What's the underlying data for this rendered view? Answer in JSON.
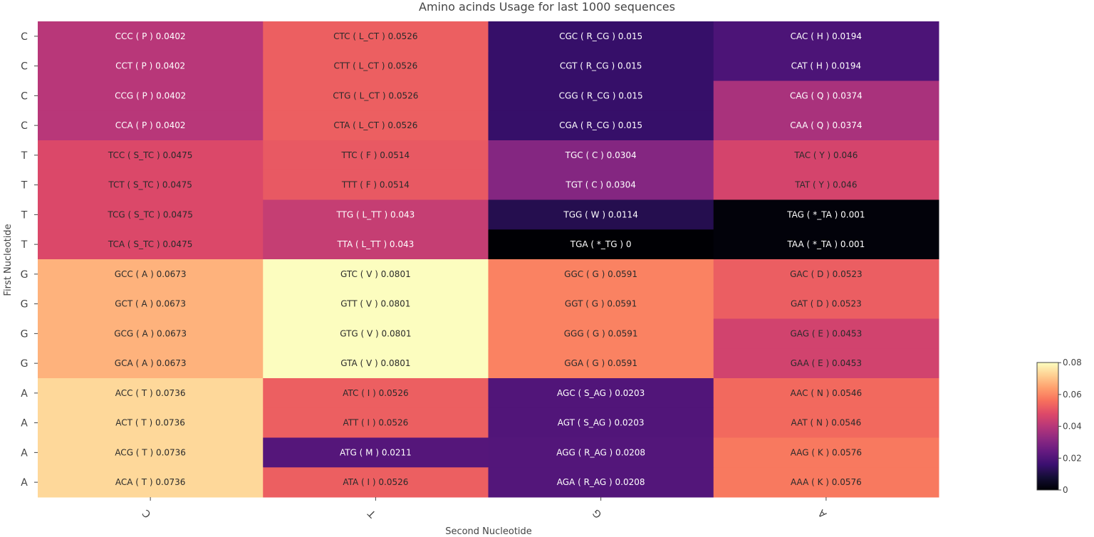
{
  "chart_data": {
    "type": "heatmap",
    "title": "Amino acinds Usage for last 1000 sequences",
    "xlabel": "Second Nucleotide",
    "ylabel": "First Nucleotide",
    "x_categories": [
      "C",
      "T",
      "G",
      "A"
    ],
    "y_categories": [
      "C",
      "C",
      "C",
      "C",
      "T",
      "T",
      "T",
      "T",
      "G",
      "G",
      "G",
      "G",
      "A",
      "A",
      "A",
      "A"
    ],
    "values": [
      [
        0.0402,
        0.0526,
        0.015,
        0.0194
      ],
      [
        0.0402,
        0.0526,
        0.015,
        0.0194
      ],
      [
        0.0402,
        0.0526,
        0.015,
        0.0374
      ],
      [
        0.0402,
        0.0526,
        0.015,
        0.0374
      ],
      [
        0.0475,
        0.0514,
        0.0304,
        0.046
      ],
      [
        0.0475,
        0.0514,
        0.0304,
        0.046
      ],
      [
        0.0475,
        0.043,
        0.0114,
        0.001
      ],
      [
        0.0475,
        0.043,
        0,
        0.001
      ],
      [
        0.0673,
        0.0801,
        0.0591,
        0.0523
      ],
      [
        0.0673,
        0.0801,
        0.0591,
        0.0523
      ],
      [
        0.0673,
        0.0801,
        0.0591,
        0.0453
      ],
      [
        0.0673,
        0.0801,
        0.0591,
        0.0453
      ],
      [
        0.0736,
        0.0526,
        0.0203,
        0.0546
      ],
      [
        0.0736,
        0.0526,
        0.0203,
        0.0546
      ],
      [
        0.0736,
        0.0211,
        0.0208,
        0.0576
      ],
      [
        0.0736,
        0.0526,
        0.0208,
        0.0576
      ]
    ],
    "cell_labels": [
      [
        "CCC ( P ) 0.0402",
        "CTC ( L_CT ) 0.0526",
        "CGC ( R_CG ) 0.015",
        "CAC ( H ) 0.0194"
      ],
      [
        "CCT ( P ) 0.0402",
        "CTT ( L_CT ) 0.0526",
        "CGT ( R_CG ) 0.015",
        "CAT ( H ) 0.0194"
      ],
      [
        "CCG ( P ) 0.0402",
        "CTG ( L_CT ) 0.0526",
        "CGG ( R_CG ) 0.015",
        "CAG ( Q ) 0.0374"
      ],
      [
        "CCA ( P ) 0.0402",
        "CTA ( L_CT ) 0.0526",
        "CGA ( R_CG ) 0.015",
        "CAA ( Q ) 0.0374"
      ],
      [
        "TCC ( S_TC ) 0.0475",
        "TTC ( F ) 0.0514",
        "TGC ( C ) 0.0304",
        "TAC ( Y ) 0.046"
      ],
      [
        "TCT ( S_TC ) 0.0475",
        "TTT ( F ) 0.0514",
        "TGT ( C ) 0.0304",
        "TAT ( Y ) 0.046"
      ],
      [
        "TCG ( S_TC ) 0.0475",
        "TTG ( L_TT ) 0.043",
        "TGG ( W ) 0.0114",
        "TAG ( *_TA ) 0.001"
      ],
      [
        "TCA ( S_TC ) 0.0475",
        "TTA ( L_TT ) 0.043",
        "TGA ( *_TG ) 0",
        "TAA ( *_TA ) 0.001"
      ],
      [
        "GCC ( A ) 0.0673",
        "GTC ( V ) 0.0801",
        "GGC ( G ) 0.0591",
        "GAC ( D ) 0.0523"
      ],
      [
        "GCT ( A ) 0.0673",
        "GTT ( V ) 0.0801",
        "GGT ( G ) 0.0591",
        "GAT ( D ) 0.0523"
      ],
      [
        "GCG ( A ) 0.0673",
        "GTG ( V ) 0.0801",
        "GGG ( G ) 0.0591",
        "GAG ( E ) 0.0453"
      ],
      [
        "GCA ( A ) 0.0673",
        "GTA ( V ) 0.0801",
        "GGA ( G ) 0.0591",
        "GAA ( E ) 0.0453"
      ],
      [
        "ACC ( T ) 0.0736",
        "ATC ( I ) 0.0526",
        "AGC ( S_AG ) 0.0203",
        "AAC ( N ) 0.0546"
      ],
      [
        "ACT ( T ) 0.0736",
        "ATT ( I ) 0.0526",
        "AGT ( S_AG ) 0.0203",
        "AAT ( N ) 0.0546"
      ],
      [
        "ACG ( T ) 0.0736",
        "ATG ( M ) 0.0211",
        "AGG ( R_AG ) 0.0208",
        "AAG ( K ) 0.0576"
      ],
      [
        "ACA ( T ) 0.0736",
        "ATA ( I ) 0.0526",
        "AGA ( R_AG ) 0.0208",
        "AAA ( K ) 0.0576"
      ]
    ],
    "colorscale": "magma",
    "zmin": 0,
    "zmax": 0.0801,
    "colorbar": {
      "tick_values": [
        0,
        0.02,
        0.04,
        0.06,
        0.08
      ],
      "tick_labels": [
        "0",
        "0.02",
        "0.04",
        "0.06",
        "0.08"
      ]
    },
    "grid": false
  }
}
